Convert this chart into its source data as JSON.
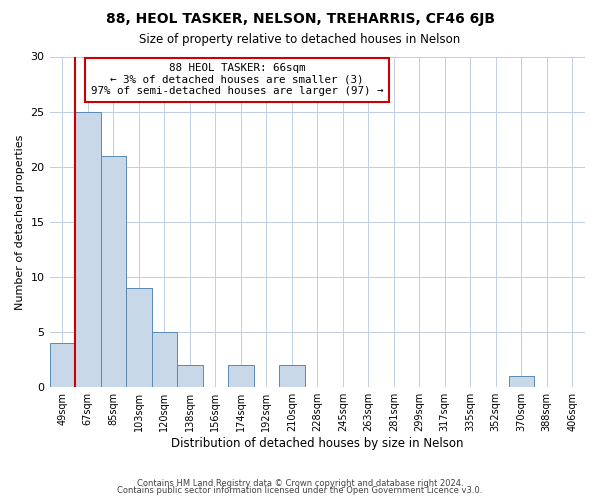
{
  "title": "88, HEOL TASKER, NELSON, TREHARRIS, CF46 6JB",
  "subtitle": "Size of property relative to detached houses in Nelson",
  "xlabel": "Distribution of detached houses by size in Nelson",
  "ylabel": "Number of detached properties",
  "bar_color": "#c8d8e8",
  "bar_edge_color": "#5a8ab0",
  "bin_labels": [
    "49sqm",
    "67sqm",
    "85sqm",
    "103sqm",
    "120sqm",
    "138sqm",
    "156sqm",
    "174sqm",
    "192sqm",
    "210sqm",
    "228sqm",
    "245sqm",
    "263sqm",
    "281sqm",
    "299sqm",
    "317sqm",
    "335sqm",
    "352sqm",
    "370sqm",
    "388sqm",
    "406sqm"
  ],
  "bar_heights": [
    4,
    25,
    21,
    9,
    5,
    2,
    0,
    2,
    0,
    2,
    0,
    0,
    0,
    0,
    0,
    0,
    0,
    0,
    1,
    0,
    0
  ],
  "ylim": [
    0,
    30
  ],
  "yticks": [
    0,
    5,
    10,
    15,
    20,
    25,
    30
  ],
  "marker_color": "#cc0000",
  "annotation_title": "88 HEOL TASKER: 66sqm",
  "annotation_line2": "← 3% of detached houses are smaller (3)",
  "annotation_line3": "97% of semi-detached houses are larger (97) →",
  "annotation_box_color": "#ffffff",
  "annotation_box_edge": "#cc0000",
  "footer1": "Contains HM Land Registry data © Crown copyright and database right 2024.",
  "footer2": "Contains public sector information licensed under the Open Government Licence v3.0.",
  "bg_color": "#ffffff",
  "grid_color": "#c0cfe0"
}
